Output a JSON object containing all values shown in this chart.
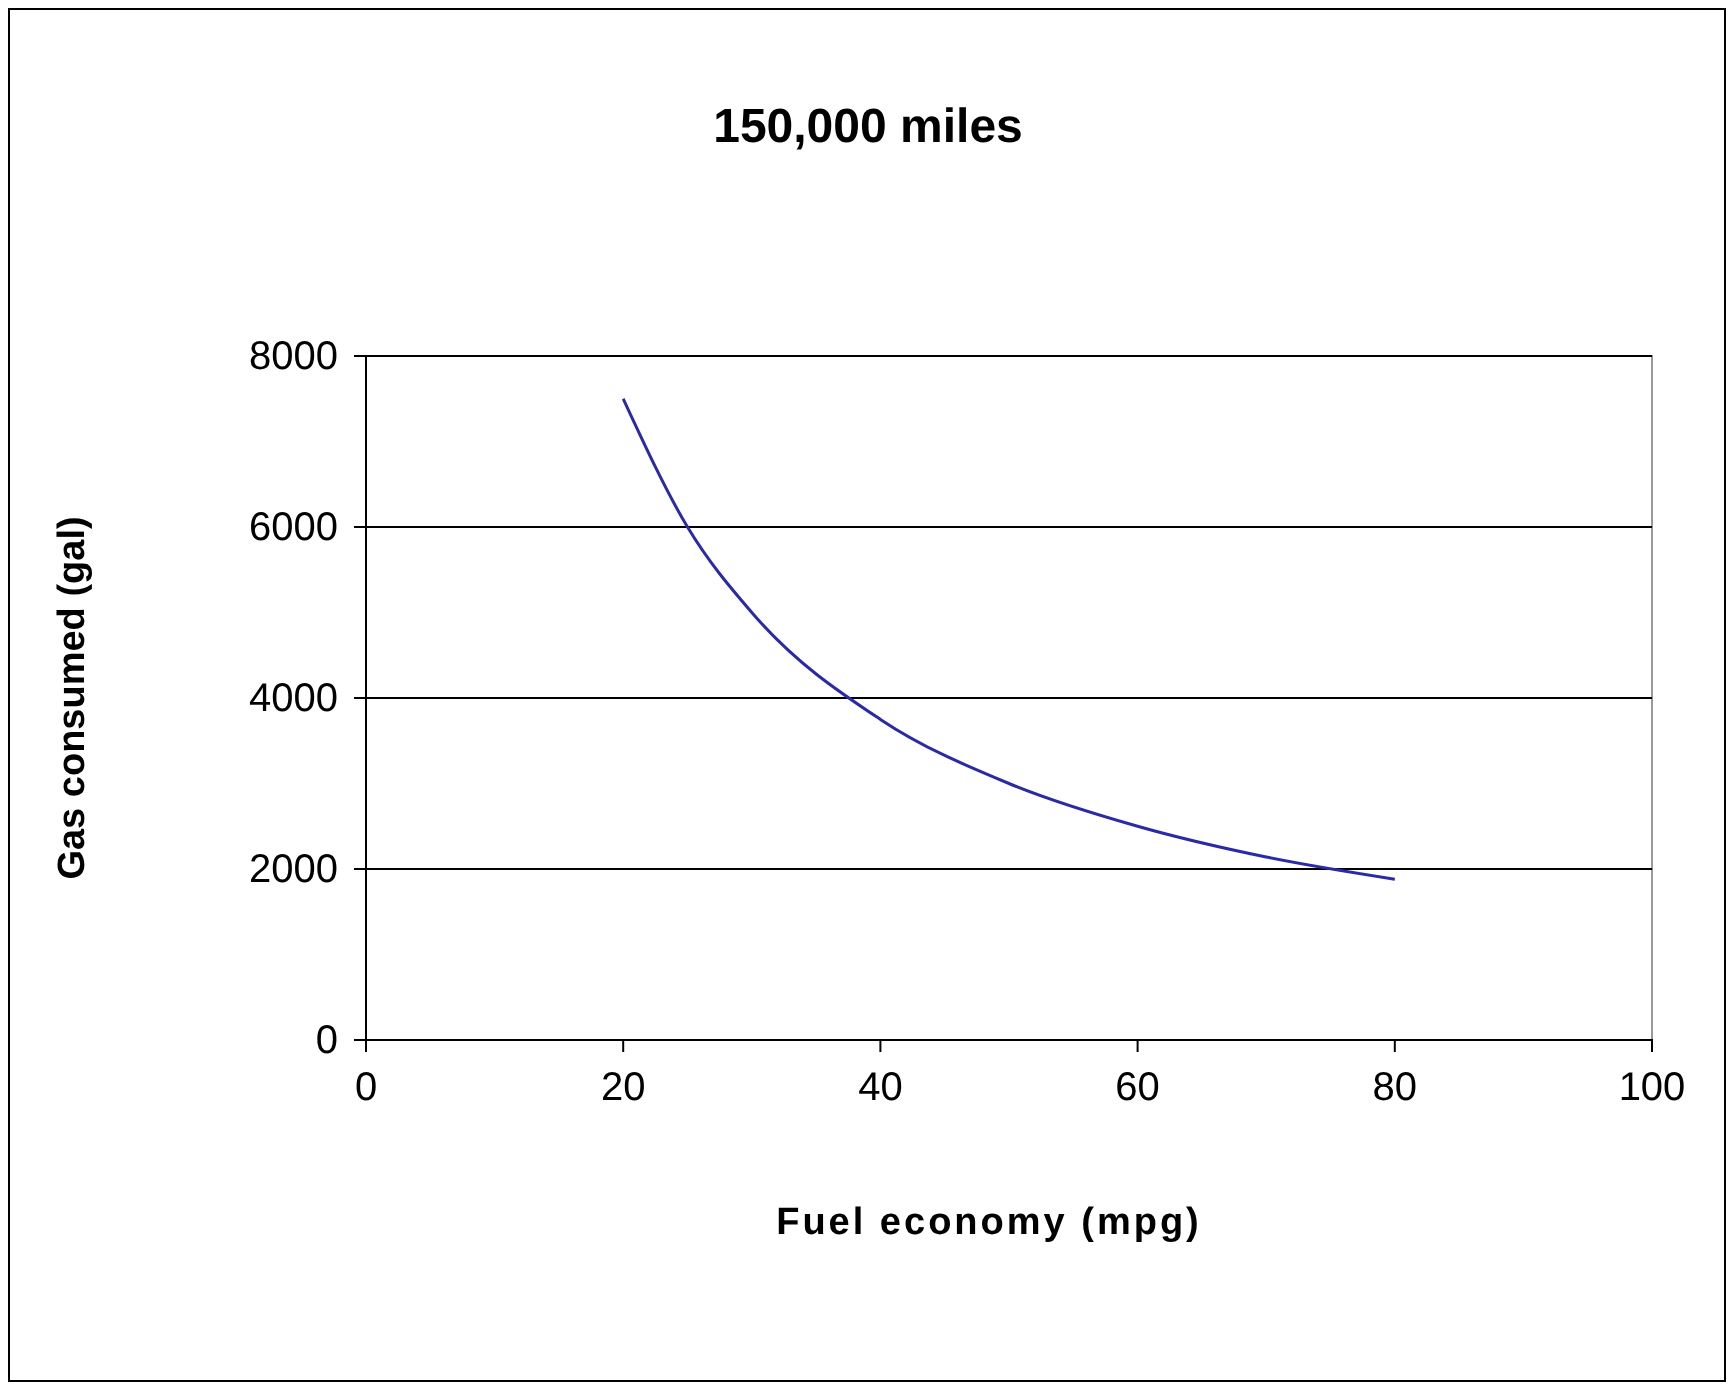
{
  "chart_data": {
    "type": "line",
    "title": "150,000 miles",
    "xlabel": "Fuel economy (mpg)",
    "ylabel": "Gas consumed (gal)",
    "x": [
      20,
      25,
      30,
      40,
      50,
      60,
      70,
      80
    ],
    "series": [
      {
        "color": "#2a2aa8",
        "values": [
          7500,
          6000,
          5000,
          3750,
          3000,
          2500,
          2140,
          1880
        ]
      }
    ],
    "xlim": [
      0,
      100
    ],
    "xticks": [
      0,
      20,
      40,
      60,
      80,
      100
    ],
    "ylim": [
      0,
      8000
    ],
    "yticks": [
      0,
      2000,
      4000,
      6000,
      8000
    ],
    "grid": "y",
    "marker": "none",
    "line_style": "solid"
  }
}
